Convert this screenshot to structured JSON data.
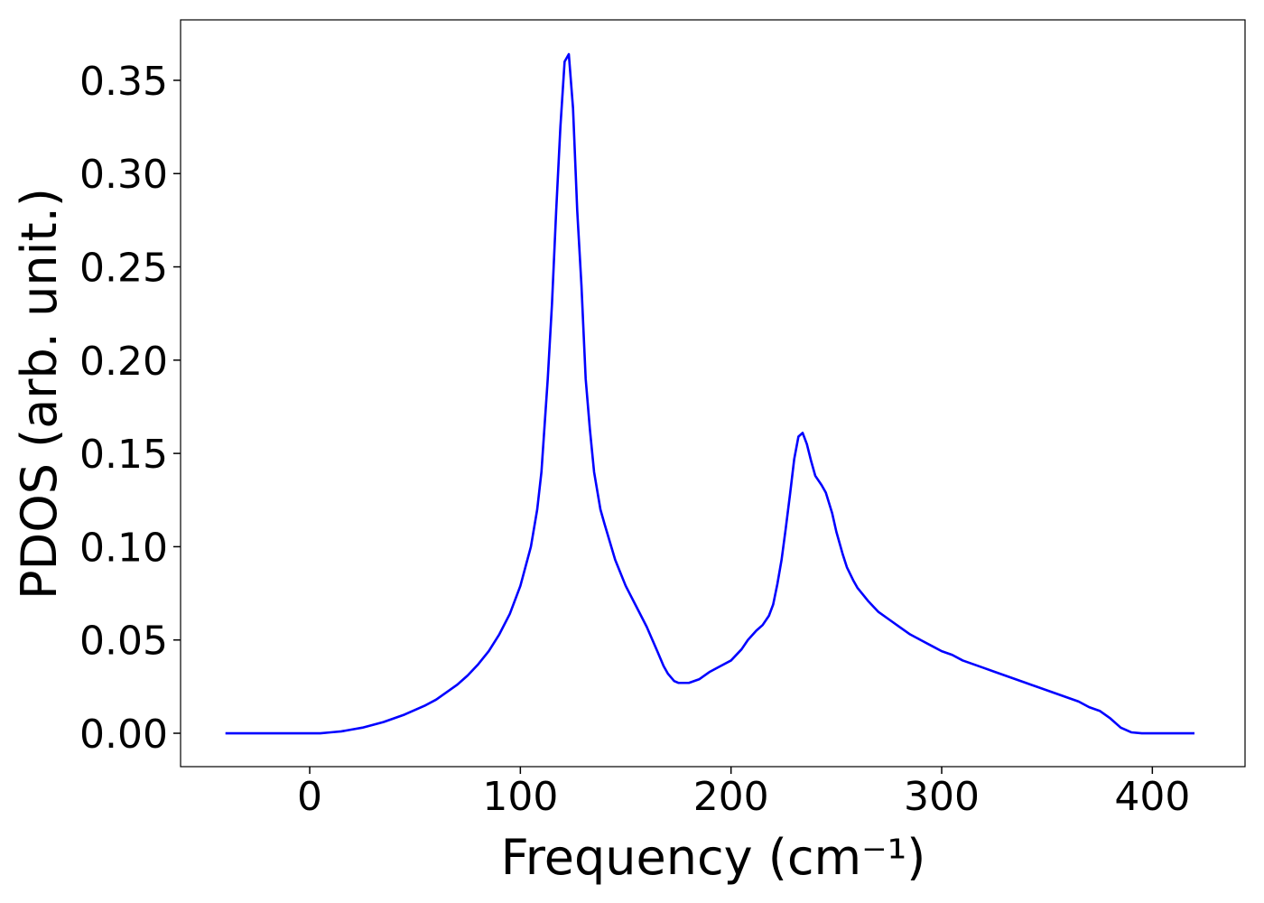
{
  "chart_data": {
    "type": "line",
    "xlabel": "Frequency (cm⁻¹)",
    "ylabel": "PDOS (arb. unit.)",
    "xlim": [
      -61.3,
      444
    ],
    "ylim": [
      -0.0179,
      0.3824
    ],
    "xticks": [
      0,
      100,
      200,
      300,
      400
    ],
    "yticks": [
      {
        "value": 0,
        "label": "0.00"
      },
      0.05,
      {
        "value": 0.1,
        "label": "0.10"
      },
      0.15,
      {
        "value": 0.2,
        "label": "0.20"
      },
      0.25,
      {
        "value": 0.3,
        "label": "0.30"
      },
      0.35
    ],
    "grid": false,
    "series": [
      {
        "color": "#0000ff",
        "x": [
          -40,
          -30,
          -20,
          -10,
          0,
          5,
          10,
          15,
          20,
          25,
          30,
          35,
          40,
          45,
          50,
          55,
          60,
          65,
          70,
          75,
          80,
          85,
          90,
          95,
          100,
          105,
          108,
          110,
          113,
          115,
          117,
          119,
          121,
          123,
          125,
          127,
          129,
          131,
          133,
          135,
          138,
          140,
          145,
          150,
          155,
          160,
          165,
          168,
          170,
          173,
          175,
          180,
          185,
          190,
          195,
          200,
          205,
          208,
          212,
          215,
          218,
          220,
          222,
          224,
          226,
          228,
          230,
          232,
          234,
          236,
          238,
          240,
          243,
          245,
          248,
          250,
          253,
          255,
          258,
          260,
          265,
          270,
          275,
          280,
          285,
          290,
          295,
          300,
          305,
          310,
          315,
          320,
          325,
          330,
          335,
          340,
          345,
          350,
          355,
          360,
          365,
          370,
          375,
          380,
          385,
          390,
          395,
          400,
          410,
          420
        ],
        "values": [
          0,
          0,
          0,
          0,
          0,
          0,
          0.0005,
          0.001,
          0.002,
          0.003,
          0.0045,
          0.006,
          0.008,
          0.01,
          0.0125,
          0.015,
          0.018,
          0.022,
          0.026,
          0.031,
          0.037,
          0.044,
          0.053,
          0.064,
          0.079,
          0.1,
          0.12,
          0.14,
          0.19,
          0.23,
          0.28,
          0.325,
          0.36,
          0.364,
          0.335,
          0.28,
          0.24,
          0.19,
          0.163,
          0.14,
          0.12,
          0.112,
          0.093,
          0.079,
          0.068,
          0.057,
          0.044,
          0.036,
          0.032,
          0.028,
          0.027,
          0.027,
          0.029,
          0.033,
          0.036,
          0.039,
          0.045,
          0.05,
          0.055,
          0.058,
          0.063,
          0.069,
          0.08,
          0.093,
          0.11,
          0.128,
          0.147,
          0.159,
          0.161,
          0.155,
          0.146,
          0.138,
          0.133,
          0.129,
          0.118,
          0.108,
          0.096,
          0.089,
          0.082,
          0.078,
          0.071,
          0.065,
          0.061,
          0.057,
          0.053,
          0.05,
          0.047,
          0.044,
          0.042,
          0.039,
          0.037,
          0.035,
          0.033,
          0.031,
          0.029,
          0.027,
          0.025,
          0.023,
          0.021,
          0.019,
          0.017,
          0.014,
          0.012,
          0.008,
          0.003,
          0.0005,
          0,
          0,
          0,
          0
        ]
      }
    ]
  }
}
